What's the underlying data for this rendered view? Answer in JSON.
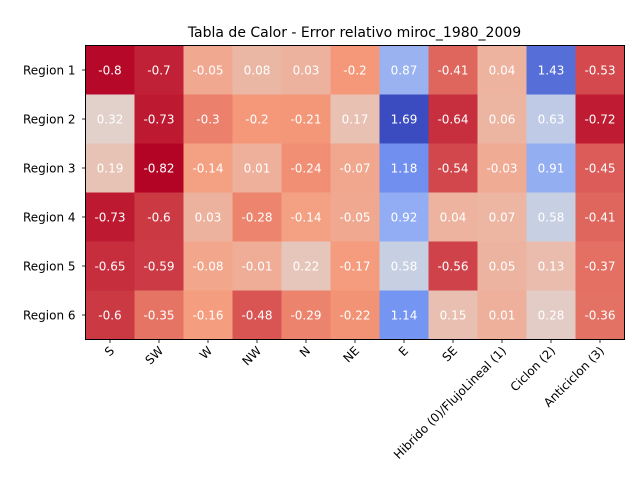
{
  "chart_data": {
    "type": "heatmap",
    "title": "Tabla de Calor - Error relativo miroc_1980_2009",
    "rows": [
      "Region 1",
      "Region 2",
      "Region 3",
      "Region 4",
      "Region 5",
      "Region 6"
    ],
    "columns": [
      "S",
      "SW",
      "W",
      "NW",
      "N",
      "NE",
      "E",
      "SE",
      "Hibrido (0)/FlujoLineal (1)",
      "Ciclon (2)",
      "Anticiclon (3)"
    ],
    "values": [
      [
        -0.8,
        -0.7,
        -0.05,
        0.08,
        0.03,
        -0.2,
        0.87,
        -0.41,
        0.04,
        1.43,
        -0.53
      ],
      [
        0.32,
        -0.73,
        -0.3,
        -0.2,
        -0.21,
        0.17,
        1.69,
        -0.64,
        0.06,
        0.63,
        -0.72
      ],
      [
        0.19,
        -0.82,
        -0.14,
        0.01,
        -0.24,
        -0.07,
        1.18,
        -0.54,
        -0.03,
        0.91,
        -0.45
      ],
      [
        -0.73,
        -0.6,
        0.03,
        -0.28,
        -0.14,
        -0.05,
        0.92,
        0.04,
        0.07,
        0.58,
        -0.41
      ],
      [
        -0.65,
        -0.59,
        -0.08,
        -0.01,
        0.22,
        -0.17,
        0.58,
        -0.56,
        0.05,
        0.13,
        -0.37
      ],
      [
        -0.6,
        -0.35,
        -0.16,
        -0.48,
        -0.29,
        -0.22,
        1.14,
        0.15,
        0.01,
        0.28,
        -0.36
      ]
    ],
    "colormap": "coolwarm_r",
    "color_range": [
      -0.82,
      1.69
    ],
    "label_color": "#ffffff",
    "grid": false,
    "x_tick_rotation": 45
  }
}
